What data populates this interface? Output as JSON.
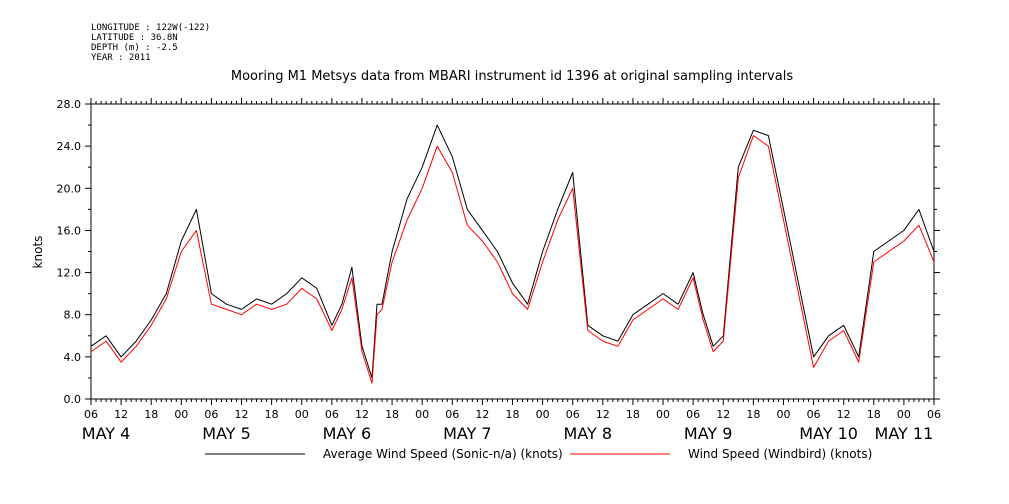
{
  "header": {
    "lines": [
      "LONGITUDE : 122W(-122)",
      "LATITUDE : 36.8N",
      "DEPTH (m) : -2.5",
      "YEAR : 2011"
    ]
  },
  "chart_data": {
    "type": "line",
    "title": "Mooring M1 Metsys data from MBARI instrument id 1396 at original sampling intervals",
    "xlabel": "",
    "ylabel": "knots",
    "ylim": [
      0,
      28
    ],
    "yticks": [
      "0.0",
      "4.0",
      "8.0",
      "12.0",
      "16.0",
      "20.0",
      "24.0",
      "28.0"
    ],
    "xlim_hours": [
      0,
      168
    ],
    "x_tick_labels": [
      "06",
      "12",
      "18",
      "00",
      "06",
      "12",
      "18",
      "00",
      "06",
      "12",
      "18",
      "00",
      "06",
      "12",
      "18",
      "00",
      "06",
      "12",
      "18",
      "00",
      "06",
      "12",
      "18",
      "00",
      "06",
      "12",
      "18",
      "00",
      "06"
    ],
    "day_labels": [
      "MAY  4",
      "MAY  5",
      "MAY  6",
      "MAY  7",
      "MAY  8",
      "MAY  9",
      "MAY 10",
      "MAY 11"
    ],
    "grid": false,
    "legend_position": "bottom",
    "series": [
      {
        "name": "Average Wind Speed (Sonic-n/a) (knots)",
        "color": "#000000",
        "x_hours": [
          0,
          3,
          6,
          9,
          12,
          15,
          18,
          21,
          24,
          27,
          30,
          33,
          36,
          39,
          42,
          45,
          48,
          50,
          52,
          54,
          56,
          57,
          58,
          60,
          63,
          66,
          69,
          72,
          75,
          78,
          81,
          84,
          87,
          90,
          93,
          96,
          99,
          102,
          105,
          108,
          111,
          114,
          117,
          120,
          122,
          124,
          126,
          129,
          132,
          135,
          138,
          141,
          144,
          147,
          150,
          153,
          156,
          159,
          162,
          165,
          168
        ],
        "values": [
          5.0,
          6.0,
          4.0,
          5.5,
          7.5,
          10.0,
          15.0,
          18.0,
          10.0,
          9.0,
          8.5,
          9.5,
          9.0,
          10.0,
          11.5,
          10.5,
          7.0,
          9.0,
          12.5,
          5.0,
          2.0,
          9.0,
          9.0,
          14.0,
          19.0,
          22.0,
          26.0,
          23.0,
          18.0,
          16.0,
          14.0,
          11.0,
          9.0,
          14.0,
          18.0,
          21.5,
          7.0,
          6.0,
          5.5,
          8.0,
          9.0,
          10.0,
          9.0,
          12.0,
          8.0,
          5.0,
          6.0,
          22.0,
          25.5,
          25.0,
          18.0,
          11.0,
          4.0,
          6.0,
          7.0,
          4.0,
          14.0,
          15.0,
          16.0,
          18.0,
          14.0
        ]
      },
      {
        "name": "Wind Speed (Windbird) (knots)",
        "color": "#ff0000",
        "x_hours": [
          0,
          3,
          6,
          9,
          12,
          15,
          18,
          21,
          24,
          27,
          30,
          33,
          36,
          39,
          42,
          45,
          48,
          50,
          52,
          54,
          56,
          57,
          58,
          60,
          63,
          66,
          69,
          72,
          75,
          78,
          81,
          84,
          87,
          90,
          93,
          96,
          99,
          102,
          105,
          108,
          111,
          114,
          117,
          120,
          122,
          124,
          126,
          129,
          132,
          135,
          138,
          141,
          144,
          147,
          150,
          153,
          156,
          159,
          162,
          165,
          168
        ],
        "values": [
          4.5,
          5.5,
          3.5,
          5.0,
          7.0,
          9.5,
          14.0,
          16.0,
          9.0,
          8.5,
          8.0,
          9.0,
          8.5,
          9.0,
          10.5,
          9.5,
          6.5,
          8.5,
          11.5,
          4.5,
          1.5,
          8.0,
          8.5,
          13.0,
          17.0,
          20.0,
          24.0,
          21.5,
          16.5,
          15.0,
          13.0,
          10.0,
          8.5,
          13.0,
          17.0,
          20.0,
          6.5,
          5.5,
          5.0,
          7.5,
          8.5,
          9.5,
          8.5,
          11.5,
          7.5,
          4.5,
          5.5,
          21.0,
          25.0,
          24.0,
          17.0,
          10.0,
          3.0,
          5.5,
          6.5,
          3.5,
          13.0,
          14.0,
          15.0,
          16.5,
          13.0
        ]
      }
    ]
  }
}
